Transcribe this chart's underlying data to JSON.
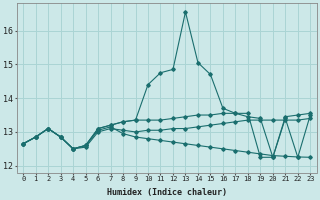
{
  "xlabel": "Humidex (Indice chaleur)",
  "ylabel": "",
  "bg_color": "#cce8e8",
  "grid_color": "#aad4d4",
  "line_color": "#1a6e6e",
  "xlim": [
    -0.5,
    23.5
  ],
  "ylim": [
    11.8,
    16.8
  ],
  "yticks": [
    12,
    13,
    14,
    15,
    16
  ],
  "xticks": [
    0,
    1,
    2,
    3,
    4,
    5,
    6,
    7,
    8,
    9,
    10,
    11,
    12,
    13,
    14,
    15,
    16,
    17,
    18,
    19,
    20,
    21,
    22,
    23
  ],
  "series": [
    [
      12.65,
      12.85,
      13.1,
      12.85,
      12.5,
      12.55,
      13.0,
      13.1,
      13.05,
      13.0,
      13.05,
      13.05,
      13.1,
      13.1,
      13.15,
      13.2,
      13.25,
      13.3,
      13.35,
      13.35,
      13.35,
      13.35,
      13.35,
      13.4
    ],
    [
      12.65,
      12.85,
      13.1,
      12.85,
      12.5,
      12.6,
      13.05,
      13.15,
      12.95,
      12.85,
      12.8,
      12.75,
      12.7,
      12.65,
      12.6,
      12.55,
      12.5,
      12.45,
      12.4,
      12.35,
      12.3,
      12.28,
      12.26,
      12.25
    ],
    [
      12.65,
      12.85,
      13.1,
      12.85,
      12.5,
      12.6,
      13.1,
      13.2,
      13.3,
      13.35,
      14.4,
      14.75,
      14.85,
      16.55,
      15.05,
      14.7,
      13.7,
      13.55,
      13.45,
      13.4,
      12.25,
      13.4,
      12.25,
      13.5
    ],
    [
      12.65,
      12.85,
      13.1,
      12.85,
      12.5,
      12.6,
      13.1,
      13.2,
      13.3,
      13.35,
      13.35,
      13.35,
      13.4,
      13.45,
      13.5,
      13.5,
      13.55,
      13.55,
      13.55,
      12.25,
      12.25,
      13.45,
      13.5,
      13.55
    ]
  ]
}
